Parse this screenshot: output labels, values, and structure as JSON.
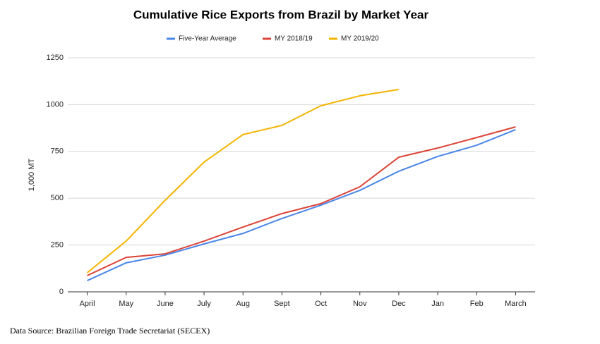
{
  "chart_data": {
    "type": "line",
    "title": "Cumulative Rice Exports from Brazil by Market Year",
    "ylabel": "1,000 MT",
    "source": "Data Source:  Brazilian Foreign Trade Secretariat (SECEX)",
    "categories": [
      "April",
      "May",
      "June",
      "July",
      "Aug",
      "Sept",
      "Oct",
      "Nov",
      "Dec",
      "Jan",
      "Feb",
      "March"
    ],
    "series": [
      {
        "name": "Five-Year Average",
        "color": "#4a86e8",
        "values": [
          60,
          155,
          196,
          256,
          312,
          392,
          463,
          542,
          644,
          723,
          783,
          866
        ]
      },
      {
        "name": "MY 2018/19",
        "color": "#db4437",
        "values": [
          87,
          184,
          203,
          271,
          346,
          418,
          471,
          561,
          719,
          768,
          824,
          881
        ]
      },
      {
        "name": "MY 2019/20",
        "color": "#f4b400",
        "values": [
          102,
          271,
          489,
          693,
          840,
          889,
          994,
          1047,
          1081,
          null,
          null,
          null
        ]
      }
    ],
    "ylim": [
      0,
      1250
    ],
    "yticks": [
      0,
      250,
      500,
      750,
      1000,
      1250
    ],
    "grid": true,
    "legend": "top"
  }
}
